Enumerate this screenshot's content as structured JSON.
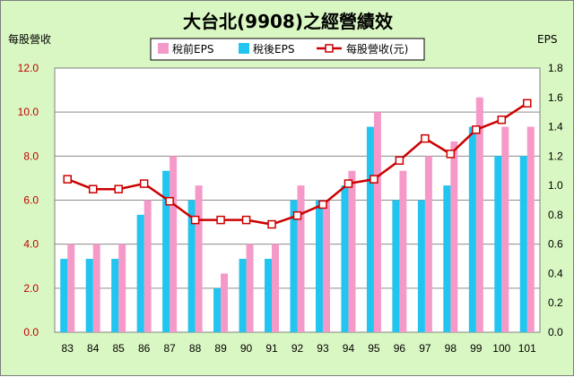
{
  "chart_data": {
    "type": "bar",
    "title": "大台北(9908)之經營績效",
    "left_axis_label": "每股營收",
    "right_axis_label": "EPS",
    "categories": [
      "83",
      "84",
      "85",
      "86",
      "87",
      "88",
      "89",
      "90",
      "91",
      "92",
      "93",
      "94",
      "95",
      "96",
      "97",
      "98",
      "99",
      "100",
      "101"
    ],
    "left_ylim": [
      0,
      12
    ],
    "left_ticks": [
      "0.0",
      "2.0",
      "4.0",
      "6.0",
      "8.0",
      "10.0",
      "12.0"
    ],
    "right_ylim": [
      0,
      1.8
    ],
    "right_ticks": [
      "0.0",
      "0.2",
      "0.4",
      "0.6",
      "0.8",
      "1.0",
      "1.2",
      "1.4",
      "1.6",
      "1.8"
    ],
    "grid": true,
    "legend_position": "top",
    "series": [
      {
        "name": "稅前EPS",
        "kind": "bar",
        "axis": "right",
        "color": "#f59ac8",
        "values": [
          0.6,
          0.6,
          0.6,
          0.9,
          1.2,
          1.0,
          0.4,
          0.6,
          0.6,
          1.0,
          0.9,
          1.1,
          1.5,
          1.1,
          1.2,
          1.3,
          1.6,
          1.4,
          1.4
        ]
      },
      {
        "name": "稅後EPS",
        "kind": "bar",
        "axis": "right",
        "color": "#22c4f0",
        "values": [
          0.5,
          0.5,
          0.5,
          0.8,
          1.1,
          0.9,
          0.3,
          0.5,
          0.5,
          0.9,
          0.9,
          1.0,
          1.4,
          0.9,
          0.9,
          1.0,
          1.4,
          1.2,
          1.2
        ]
      },
      {
        "name": "每股營收(元)",
        "kind": "line",
        "axis": "left",
        "color": "#cc0000",
        "values": [
          6.95,
          6.5,
          6.5,
          6.75,
          5.95,
          5.1,
          5.1,
          5.1,
          4.9,
          5.3,
          5.8,
          6.75,
          6.95,
          7.8,
          8.8,
          8.1,
          9.2,
          9.65,
          10.4
        ]
      }
    ]
  }
}
